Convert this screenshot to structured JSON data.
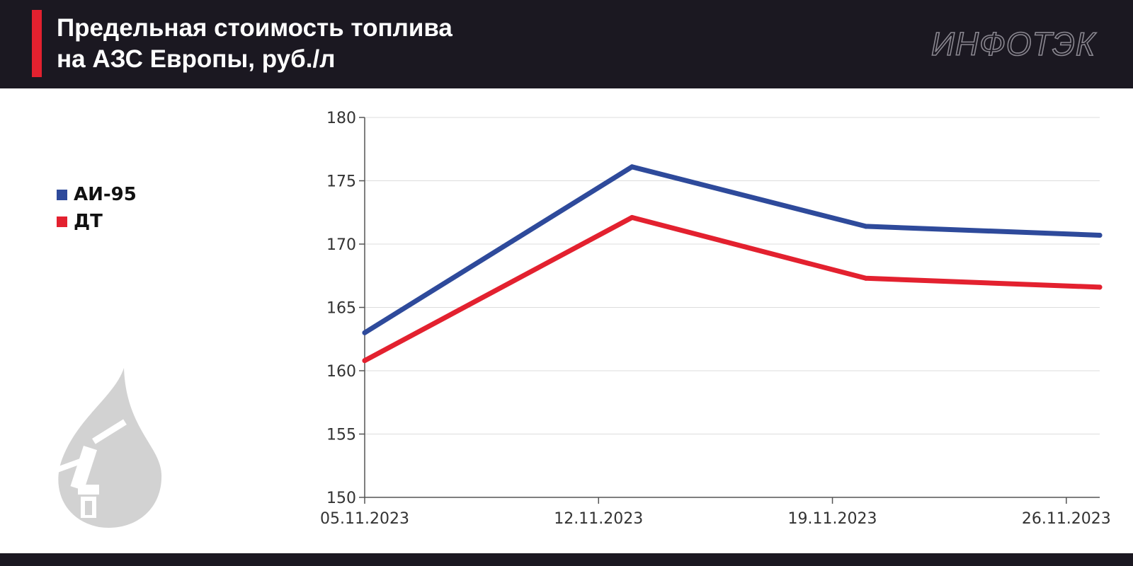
{
  "header": {
    "title_line1": "Предельная стоимость топлива",
    "title_line2": "на АЗС Европы, руб./л",
    "brand": "ИНФОТЭК"
  },
  "colors": {
    "header_bg": "#1b1821",
    "accent": "#e3212f",
    "series_ai95": "#2e4a9b",
    "series_dt": "#e3212f",
    "grid": "#dddddd",
    "axis": "#555555"
  },
  "icons": [
    "fuel-drop-nozzle-icon"
  ],
  "chart_data": {
    "type": "line",
    "title": "Предельная стоимость топлива на АЗС Европы, руб./л",
    "xlabel": "",
    "ylabel": "",
    "x_ticks": [
      "05.11.2023",
      "12.11.2023",
      "19.11.2023",
      "26.11.2023"
    ],
    "y_ticks": [
      150,
      155,
      160,
      165,
      170,
      175,
      180
    ],
    "ylim": [
      150,
      180
    ],
    "grid": true,
    "legend_position": "left",
    "series": [
      {
        "name": "АИ-95",
        "color": "#2e4a9b",
        "points": [
          {
            "x": "05.11.2023",
            "y": 163.0
          },
          {
            "x": "13.11.2023",
            "y": 176.1
          },
          {
            "x": "20.11.2023",
            "y": 171.4
          },
          {
            "x": "27.11.2023",
            "y": 170.7
          }
        ]
      },
      {
        "name": "ДТ",
        "color": "#e3212f",
        "points": [
          {
            "x": "05.11.2023",
            "y": 160.8
          },
          {
            "x": "13.11.2023",
            "y": 172.1
          },
          {
            "x": "20.11.2023",
            "y": 167.3
          },
          {
            "x": "27.11.2023",
            "y": 166.6
          }
        ]
      }
    ]
  }
}
